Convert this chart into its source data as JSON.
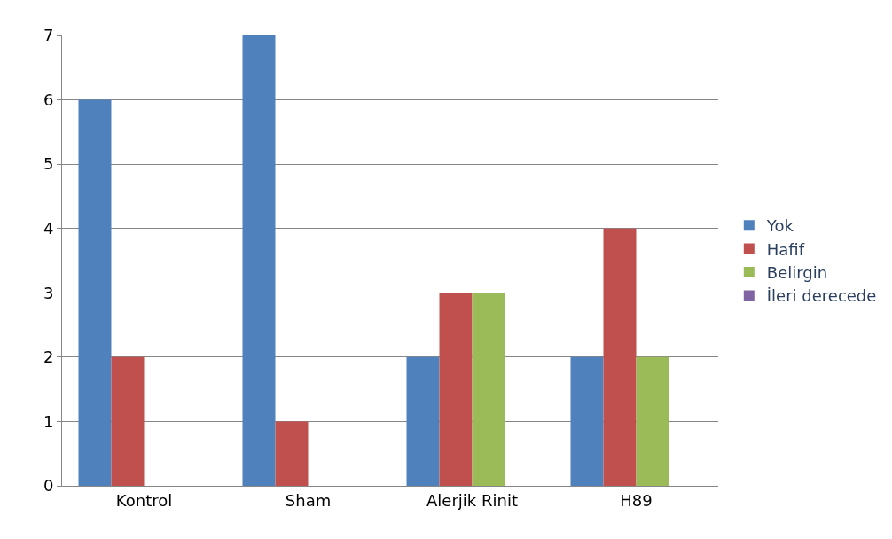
{
  "chart_data": {
    "type": "bar",
    "categories": [
      "Kontrol",
      "Sham",
      "Alerjik Rinit",
      "H89"
    ],
    "series": [
      {
        "name": "Yok",
        "color": "#4f81bd",
        "values": [
          6,
          7,
          2,
          2
        ]
      },
      {
        "name": "Hafif",
        "color": "#c0504d",
        "values": [
          2,
          1,
          3,
          4
        ]
      },
      {
        "name": "Belirgin",
        "color": "#9bbb59",
        "values": [
          0,
          0,
          3,
          2
        ]
      },
      {
        "name": "İleri derecede",
        "color": "#8064a2",
        "values": [
          0,
          0,
          0,
          0
        ]
      }
    ],
    "ylim": [
      0,
      7
    ],
    "yticks": [
      0,
      1,
      2,
      3,
      4,
      5,
      6,
      7
    ],
    "grid": "y",
    "legend": "right"
  }
}
